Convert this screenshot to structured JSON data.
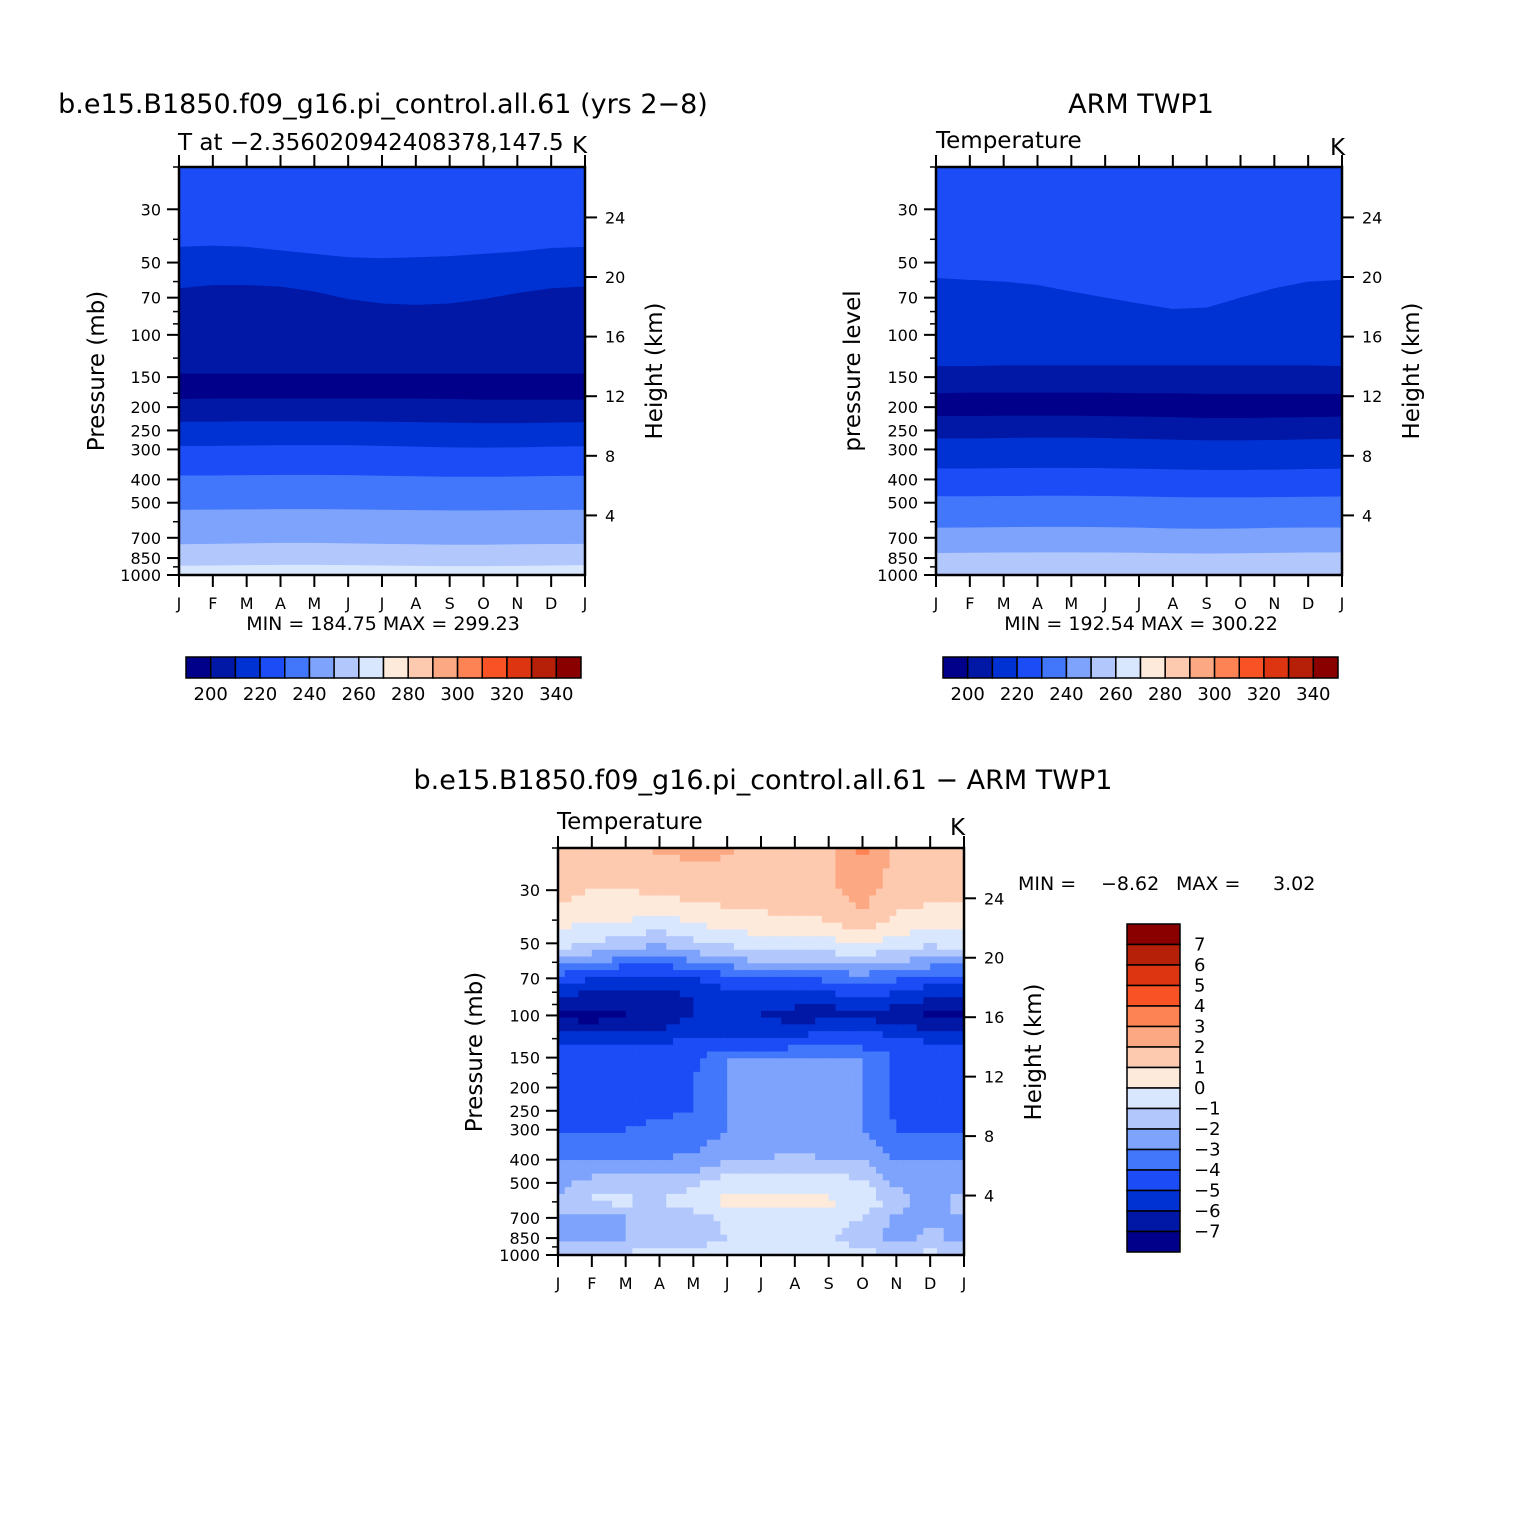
{
  "figure": {
    "top_left_title": "b.e15.B1850.f09_g16.pi_control.all.61 (yrs 2−8)",
    "top_right_title": "ARM TWP1",
    "bottom_title": "b.e15.B1850.f09_g16.pi_control.all.61 − ARM TWP1"
  },
  "colors": {
    "temp_levels": [
      "#00008a",
      "#0018a5",
      "#0031d3",
      "#1b4cf6",
      "#4277fb",
      "#7da3fc",
      "#b2c8fd",
      "#d9e7fe",
      "#feeadb",
      "#fdcab0",
      "#fca983",
      "#fd8254",
      "#f95325",
      "#dd3411",
      "#b62008",
      "#8a0000"
    ],
    "diff_levels": [
      "#00008a",
      "#0018a5",
      "#0031d3",
      "#1b4cf6",
      "#4277fb",
      "#7da3fc",
      "#b2c8fd",
      "#d9e7fe",
      "#feeadb",
      "#fdcab0",
      "#fca983",
      "#fd8254",
      "#f95325",
      "#dd3411",
      "#b62008",
      "#8a0000"
    ]
  },
  "chart_data": [
    {
      "type": "heatmap",
      "title": "b.e15.B1850.f09_g16.pi_control.all.61 (yrs 2−8)",
      "subtitle": "T at −2.356020942408378,147.5",
      "units": "K",
      "xlabel": "",
      "ylabel": "Pressure (mb)",
      "y2label": "Height (km)",
      "x_ticks": [
        "J",
        "F",
        "M",
        "A",
        "M",
        "J",
        "J",
        "A",
        "S",
        "O",
        "N",
        "D",
        "J"
      ],
      "y_ticks": [
        30,
        50,
        70,
        100,
        150,
        200,
        250,
        300,
        400,
        500,
        700,
        850,
        1000
      ],
      "y2_ticks": [
        24,
        20,
        16,
        12,
        8,
        4
      ],
      "y_scale": "log",
      "ylim": [
        1000,
        20
      ],
      "min_label": "MIN = 184.75 MAX = 299.23",
      "min": 184.75,
      "max": 299.23,
      "colorbar_labels": [
        "200",
        "220",
        "240",
        "260",
        "280",
        "300",
        "320",
        "340"
      ],
      "colorbar_orientation": "horizontal",
      "band_upper_pressure_mb": [
        [
          null,
          null,
          null,
          null,
          null,
          null,
          null,
          null,
          null,
          null,
          null,
          null,
          null
        ],
        [
          30,
          30,
          30,
          30,
          30,
          30,
          30,
          30,
          30,
          30,
          30,
          30,
          30
        ],
        [
          43,
          42.5,
          43,
          44.5,
          46,
          47.5,
          48,
          47.5,
          47,
          46,
          45,
          43.5,
          43
        ],
        [
          64,
          62,
          62,
          63,
          66,
          71,
          74,
          75,
          74,
          71,
          67,
          64,
          63
        ],
        [
          145,
          145,
          145,
          145,
          145,
          145,
          145,
          145,
          145,
          145,
          145,
          145,
          145
        ],
        [
          185,
          184,
          184,
          184,
          184,
          184,
          184,
          184,
          185,
          186,
          186,
          186,
          186
        ],
        [
          230,
          230,
          229,
          229,
          229,
          229,
          230,
          231,
          232,
          233,
          233,
          232,
          231
        ],
        [
          290,
          290,
          289,
          288,
          288,
          288,
          290,
          292,
          294,
          295,
          294,
          292,
          291
        ],
        [
          385,
          385,
          384,
          383,
          383,
          384,
          386,
          388,
          390,
          390,
          389,
          387,
          386
        ],
        [
          535,
          534,
          533,
          532,
          532,
          533,
          535,
          537,
          538,
          538,
          537,
          536,
          535
        ],
        [
          745,
          742,
          738,
          735,
          735,
          738,
          742,
          745,
          748,
          748,
          745,
          743,
          742
        ],
        [
          915,
          913,
          910,
          908,
          908,
          910,
          913,
          916,
          918,
          918,
          916,
          913,
          910
        ],
        [
          995,
          996,
          997,
          997,
          998,
          998,
          998,
          998,
          998,
          998,
          996,
          995,
          995
        ]
      ],
      "band_color_index": [
        0,
        1,
        2,
        1,
        0,
        1,
        2,
        3,
        4,
        5,
        6,
        7,
        8,
        9,
        10
      ]
    },
    {
      "type": "heatmap",
      "title": "ARM TWP1",
      "subtitle": "Temperature",
      "units": "K",
      "xlabel": "",
      "ylabel": "pressure level",
      "y2label": "Height (km)",
      "x_ticks": [
        "J",
        "F",
        "M",
        "A",
        "M",
        "J",
        "J",
        "A",
        "S",
        "O",
        "N",
        "D",
        "J"
      ],
      "y_ticks": [
        30,
        50,
        70,
        100,
        150,
        200,
        250,
        300,
        400,
        500,
        700,
        850,
        1000
      ],
      "y2_ticks": [
        24,
        20,
        16,
        12,
        8,
        4
      ],
      "y_scale": "log",
      "ylim": [
        1000,
        20
      ],
      "min_label": "MIN = 192.54 MAX = 300.22",
      "min": 192.54,
      "max": 300.22,
      "colorbar_labels": [
        "200",
        "220",
        "240",
        "260",
        "280",
        "300",
        "320",
        "340"
      ],
      "colorbar_orientation": "horizontal",
      "band_upper_pressure_mb": [
        [
          null,
          null,
          null,
          null,
          null,
          null,
          null,
          null,
          null,
          null,
          null,
          null,
          null
        ],
        [
          34,
          35,
          36,
          38,
          40,
          42,
          43,
          42,
          40,
          37,
          35,
          34,
          33
        ],
        [
          58,
          59,
          60,
          62,
          66,
          70,
          74,
          78,
          77,
          70,
          64,
          60,
          59
        ],
        [
          135,
          135,
          134,
          134,
          134,
          134,
          134,
          134,
          134,
          134,
          134,
          134,
          135
        ],
        [
          175,
          174,
          174,
          174,
          174,
          174,
          175,
          175,
          176,
          176,
          176,
          176,
          176
        ],
        [
          218,
          218,
          217,
          217,
          217,
          218,
          219,
          220,
          222,
          222,
          221,
          220,
          219
        ],
        [
          270,
          270,
          269,
          268,
          268,
          269,
          271,
          273,
          275,
          275,
          274,
          272,
          271
        ],
        [
          360,
          360,
          359,
          358,
          358,
          359,
          361,
          363,
          365,
          365,
          364,
          362,
          361
        ],
        [
          470,
          470,
          469,
          468,
          468,
          469,
          471,
          474,
          475,
          475,
          474,
          472,
          471
        ],
        [
          635,
          634,
          632,
          630,
          630,
          632,
          635,
          640,
          642,
          640,
          636,
          634,
          634
        ],
        [
          810,
          808,
          806,
          805,
          805,
          806,
          808,
          812,
          814,
          812,
          809,
          806,
          805
        ]
      ],
      "band_color_index": [
        0,
        1,
        2,
        1,
        0,
        1,
        2,
        3,
        4,
        5,
        6,
        7,
        8,
        9,
        10
      ]
    },
    {
      "type": "heatmap",
      "title": "b.e15.B1850.f09_g16.pi_control.all.61 − ARM TWP1",
      "subtitle": "Temperature",
      "units": "K",
      "xlabel": "",
      "ylabel": "Pressure (mb)",
      "y2label": "Height (km)",
      "x_ticks": [
        "J",
        "F",
        "M",
        "A",
        "M",
        "J",
        "J",
        "A",
        "S",
        "O",
        "N",
        "D",
        "J"
      ],
      "y_ticks": [
        30,
        50,
        70,
        100,
        150,
        200,
        250,
        300,
        400,
        500,
        700,
        850,
        1000
      ],
      "y2_ticks": [
        24,
        20,
        16,
        12,
        8,
        4
      ],
      "y_scale": "log",
      "ylim": [
        1000,
        20
      ],
      "min_label_min": "MIN =",
      "min_value": "−8.62",
      "max_label": "MAX =",
      "max_value": "3.02",
      "min": -8.62,
      "max": 3.02,
      "colorbar_labels": [
        "7",
        "6",
        "5",
        "4",
        "3",
        "2",
        "1",
        "0",
        "−1",
        "−2",
        "−3",
        "−4",
        "−5",
        "−6",
        "−7"
      ],
      "colorbar_orientation": "vertical",
      "profile_pressure_mb": [
        20,
        30,
        40,
        50,
        60,
        70,
        85,
        100,
        115,
        130,
        150,
        200,
        250,
        300,
        400,
        500,
        600,
        700,
        850,
        1000
      ],
      "profile_values": [
        [
          1.5,
          1.5,
          0.3,
          -0.5,
          -2.5,
          -4.5,
          -6,
          -7.2,
          -6,
          -5,
          -4,
          -4,
          -4,
          -4,
          -3,
          -2.5,
          -1.5,
          -2,
          -2.5,
          -1
        ],
        [
          2,
          1,
          0.2,
          -1,
          -3,
          -5,
          -6.5,
          -7.5,
          -6.5,
          -5,
          -4.2,
          -4.2,
          -4.2,
          -4.2,
          -3.2,
          -1.5,
          -0.8,
          -2.5,
          -2,
          -0.8
        ],
        [
          2,
          1,
          0,
          -1.5,
          -3.5,
          -5.5,
          -6.5,
          -7,
          -6,
          -5,
          -4.2,
          -4.2,
          -4.2,
          -4,
          -3.2,
          -1.5,
          -0.8,
          -2,
          -2,
          -0.8
        ],
        [
          2.1,
          1.2,
          -0.3,
          -1.8,
          -3.8,
          -5.5,
          -6.5,
          -6.5,
          -6,
          -5,
          -4.3,
          -4.2,
          -4.2,
          -3.8,
          -3,
          -1.5,
          -1,
          -1.8,
          -1.5,
          -0.5
        ],
        [
          2.3,
          1.5,
          0.2,
          -1.2,
          -3,
          -5,
          -6,
          -6,
          -5.5,
          -4.8,
          -4.2,
          -4,
          -4,
          -3.6,
          -2.8,
          -1.2,
          -0.5,
          -1.5,
          -1.5,
          -0.5
        ],
        [
          2.1,
          1.6,
          0.5,
          -0.8,
          -2.5,
          -4.5,
          -5.5,
          -6,
          -5.5,
          -4.8,
          -3,
          -3,
          -3,
          -3,
          -2.2,
          -0.5,
          0.3,
          -0.8,
          -1,
          -0.5
        ],
        [
          1.8,
          1.5,
          0.8,
          -0.5,
          -2,
          -4,
          -5.5,
          -6,
          -5.5,
          -4.8,
          -3,
          -3,
          -3,
          -2.8,
          -2,
          -0.5,
          0.5,
          -0.5,
          -0.5,
          -0.5
        ],
        [
          1.6,
          1.6,
          0.9,
          -0.5,
          -2,
          -4,
          -5.5,
          -6.5,
          -5.5,
          -4.5,
          -3,
          -3,
          -3,
          -2.6,
          -1.8,
          -0.5,
          0.5,
          -0.5,
          -0.5,
          -0.5
        ],
        [
          1.7,
          1.8,
          1,
          -0.3,
          -1.8,
          -3.8,
          -5.5,
          -6.5,
          -5,
          -4.5,
          -3,
          -3,
          -3,
          -3,
          -2,
          -0.5,
          0.2,
          -0.6,
          -0.8,
          -0.5
        ],
        [
          3.2,
          2.5,
          1.8,
          0,
          -1.5,
          -3.5,
          -5,
          -6.5,
          -5,
          -4.5,
          -3,
          -3,
          -3,
          -3,
          -2,
          -0.8,
          -0.3,
          -1,
          -1.5,
          -0.7
        ],
        [
          1.8,
          1.5,
          0.8,
          -0.5,
          -2,
          -3.8,
          -5.5,
          -6.5,
          -5.5,
          -4.5,
          -4.2,
          -4.2,
          -4.2,
          -4,
          -3,
          -2.2,
          -1.5,
          -2.2,
          -2.5,
          -1
        ],
        [
          1.8,
          1.5,
          0.5,
          -0.8,
          -2.5,
          -4.5,
          -6,
          -7.2,
          -6,
          -5,
          -4.2,
          -4.2,
          -4.2,
          -4.2,
          -3,
          -2,
          -2.5,
          -2.5,
          -1.5,
          -0.8
        ],
        [
          1.5,
          1.5,
          0.3,
          -0.5,
          -2.5,
          -4.5,
          -6,
          -7.2,
          -6,
          -5,
          -4,
          -4,
          -4,
          -4,
          -3,
          -2.5,
          -1.5,
          -2,
          -2.5,
          -1
        ]
      ]
    }
  ]
}
